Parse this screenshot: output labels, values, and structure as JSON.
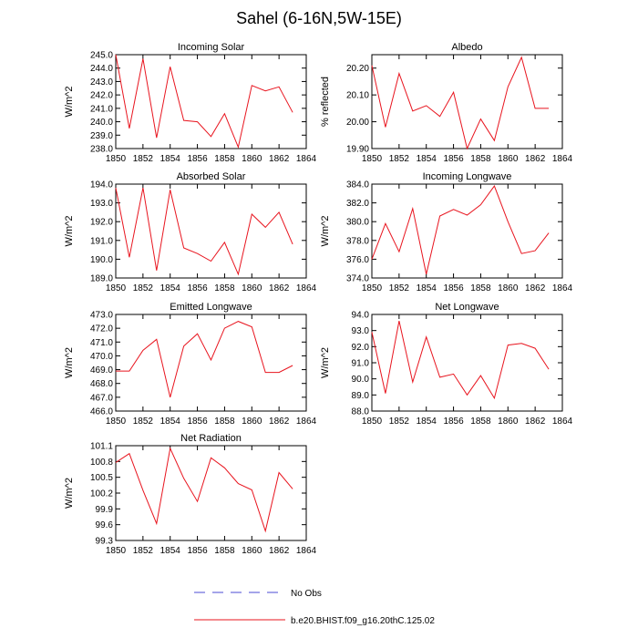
{
  "title": "Sahel (6-16N,5W-15E)",
  "colors": {
    "model_line": "#e8141e",
    "obs_line": "#4b4bd6",
    "axis": "#000000"
  },
  "legend": {
    "obs_label": "No Obs",
    "model_label": "b.e20.BHIST.f09_g16.20thC.125.02"
  },
  "chart_data": [
    {
      "type": "line",
      "title": "Incoming Solar",
      "ylabel": "W/m^2",
      "x": [
        1850,
        1851,
        1852,
        1853,
        1854,
        1855,
        1856,
        1857,
        1858,
        1859,
        1860,
        1861,
        1862,
        1863
      ],
      "values": [
        245.0,
        239.5,
        244.7,
        238.8,
        244.1,
        240.1,
        240.0,
        238.9,
        240.6,
        238.1,
        242.7,
        242.3,
        242.6,
        240.7
      ],
      "xlim": [
        1850,
        1864
      ],
      "ylim": [
        238.0,
        245.0
      ],
      "yticks": [
        238.0,
        239.0,
        240.0,
        241.0,
        242.0,
        243.0,
        244.0,
        245.0
      ],
      "ytick_labels": [
        "238.0",
        "239.0",
        "240.0",
        "241.0",
        "242.0",
        "243.0",
        "244.0",
        "245.0"
      ],
      "xticks": [
        1850,
        1852,
        1854,
        1856,
        1858,
        1860,
        1862,
        1864
      ],
      "xtick_labels": [
        "1850",
        "1852",
        "1854",
        "1856",
        "1858",
        "1860",
        "1862",
        "1864"
      ]
    },
    {
      "type": "line",
      "title": "Albedo",
      "ylabel": "% reflected",
      "x": [
        1850,
        1851,
        1852,
        1853,
        1854,
        1855,
        1856,
        1857,
        1858,
        1859,
        1860,
        1861,
        1862,
        1863
      ],
      "values": [
        20.21,
        19.98,
        20.18,
        20.04,
        20.06,
        20.02,
        20.11,
        19.9,
        20.01,
        19.93,
        20.13,
        20.24,
        20.05,
        20.05
      ],
      "xlim": [
        1850,
        1864
      ],
      "ylim": [
        19.9,
        20.25
      ],
      "yticks": [
        19.9,
        20.0,
        20.1,
        20.2
      ],
      "ytick_labels": [
        "19.90",
        "20.00",
        "20.10",
        "20.20"
      ],
      "xticks": [
        1850,
        1852,
        1854,
        1856,
        1858,
        1860,
        1862,
        1864
      ],
      "xtick_labels": [
        "1850",
        "1852",
        "1854",
        "1856",
        "1858",
        "1860",
        "1862",
        "1864"
      ]
    },
    {
      "type": "line",
      "title": "Absorbed Solar",
      "ylabel": "W/m^2",
      "x": [
        1850,
        1851,
        1852,
        1853,
        1854,
        1855,
        1856,
        1857,
        1858,
        1859,
        1860,
        1861,
        1862,
        1863
      ],
      "values": [
        193.8,
        190.1,
        193.8,
        189.4,
        193.7,
        190.6,
        190.3,
        189.9,
        190.9,
        189.2,
        192.4,
        191.7,
        192.5,
        190.8
      ],
      "xlim": [
        1850,
        1864
      ],
      "ylim": [
        189.0,
        194.0
      ],
      "yticks": [
        189.0,
        190.0,
        191.0,
        192.0,
        193.0,
        194.0
      ],
      "ytick_labels": [
        "189.0",
        "190.0",
        "191.0",
        "192.0",
        "193.0",
        "194.0"
      ],
      "xticks": [
        1850,
        1852,
        1854,
        1856,
        1858,
        1860,
        1862,
        1864
      ],
      "xtick_labels": [
        "1850",
        "1852",
        "1854",
        "1856",
        "1858",
        "1860",
        "1862",
        "1864"
      ]
    },
    {
      "type": "line",
      "title": "Incoming Longwave",
      "ylabel": "W/m^2",
      "x": [
        1850,
        1851,
        1852,
        1853,
        1854,
        1855,
        1856,
        1857,
        1858,
        1859,
        1860,
        1861,
        1862,
        1863
      ],
      "values": [
        376.0,
        379.8,
        376.8,
        381.4,
        374.4,
        380.6,
        381.3,
        380.7,
        381.8,
        383.8,
        380.0,
        376.6,
        376.9,
        378.8
      ],
      "xlim": [
        1850,
        1864
      ],
      "ylim": [
        374.0,
        384.0
      ],
      "yticks": [
        374.0,
        376.0,
        378.0,
        380.0,
        382.0,
        384.0
      ],
      "ytick_labels": [
        "374.0",
        "376.0",
        "378.0",
        "380.0",
        "382.0",
        "384.0"
      ],
      "xticks": [
        1850,
        1852,
        1854,
        1856,
        1858,
        1860,
        1862,
        1864
      ],
      "xtick_labels": [
        "1850",
        "1852",
        "1854",
        "1856",
        "1858",
        "1860",
        "1862",
        "1864"
      ]
    },
    {
      "type": "line",
      "title": "Emitted Longwave",
      "ylabel": "W/m^2",
      "x": [
        1850,
        1851,
        1852,
        1853,
        1854,
        1855,
        1856,
        1857,
        1858,
        1859,
        1860,
        1861,
        1862,
        1863
      ],
      "values": [
        468.9,
        468.9,
        470.4,
        471.2,
        467.0,
        470.7,
        471.6,
        469.7,
        472.0,
        472.5,
        472.1,
        468.8,
        468.8,
        469.3
      ],
      "xlim": [
        1850,
        1864
      ],
      "ylim": [
        466.0,
        473.0
      ],
      "yticks": [
        466.0,
        467.0,
        468.0,
        469.0,
        470.0,
        471.0,
        472.0,
        473.0
      ],
      "ytick_labels": [
        "466.0",
        "467.0",
        "468.0",
        "469.0",
        "470.0",
        "471.0",
        "472.0",
        "473.0"
      ],
      "xticks": [
        1850,
        1852,
        1854,
        1856,
        1858,
        1860,
        1862,
        1864
      ],
      "xtick_labels": [
        "1850",
        "1852",
        "1854",
        "1856",
        "1858",
        "1860",
        "1862",
        "1864"
      ]
    },
    {
      "type": "line",
      "title": "Net Longwave",
      "ylabel": "W/m^2",
      "x": [
        1850,
        1851,
        1852,
        1853,
        1854,
        1855,
        1856,
        1857,
        1858,
        1859,
        1860,
        1861,
        1862,
        1863
      ],
      "values": [
        92.9,
        89.1,
        93.6,
        89.8,
        92.6,
        90.1,
        90.3,
        89.0,
        90.2,
        88.8,
        92.1,
        92.2,
        91.9,
        90.6
      ],
      "xlim": [
        1850,
        1864
      ],
      "ylim": [
        88.0,
        94.0
      ],
      "yticks": [
        88.0,
        89.0,
        90.0,
        91.0,
        92.0,
        93.0,
        94.0
      ],
      "ytick_labels": [
        "88.0",
        "89.0",
        "90.0",
        "91.0",
        "92.0",
        "93.0",
        "94.0"
      ],
      "xticks": [
        1850,
        1852,
        1854,
        1856,
        1858,
        1860,
        1862,
        1864
      ],
      "xtick_labels": [
        "1850",
        "1852",
        "1854",
        "1856",
        "1858",
        "1860",
        "1862",
        "1864"
      ]
    },
    {
      "type": "line",
      "title": "Net Radiation",
      "ylabel": "W/m^2",
      "x": [
        1850,
        1851,
        1852,
        1853,
        1854,
        1855,
        1856,
        1857,
        1858,
        1859,
        1860,
        1861,
        1862,
        1863
      ],
      "values": [
        100.78,
        100.95,
        100.25,
        99.62,
        101.05,
        100.48,
        100.04,
        100.87,
        100.68,
        100.38,
        100.26,
        99.48,
        100.59,
        100.28
      ],
      "xlim": [
        1850,
        1864
      ],
      "ylim": [
        99.3,
        101.1
      ],
      "yticks": [
        99.3,
        99.6,
        99.9,
        100.2,
        100.5,
        100.8,
        101.1
      ],
      "ytick_labels": [
        "99.3",
        "99.6",
        "99.9",
        "100.2",
        "100.5",
        "100.8",
        "101.1"
      ],
      "xticks": [
        1850,
        1852,
        1854,
        1856,
        1858,
        1860,
        1862,
        1864
      ],
      "xtick_labels": [
        "1850",
        "1852",
        "1854",
        "1856",
        "1858",
        "1860",
        "1862",
        "1864"
      ]
    }
  ]
}
